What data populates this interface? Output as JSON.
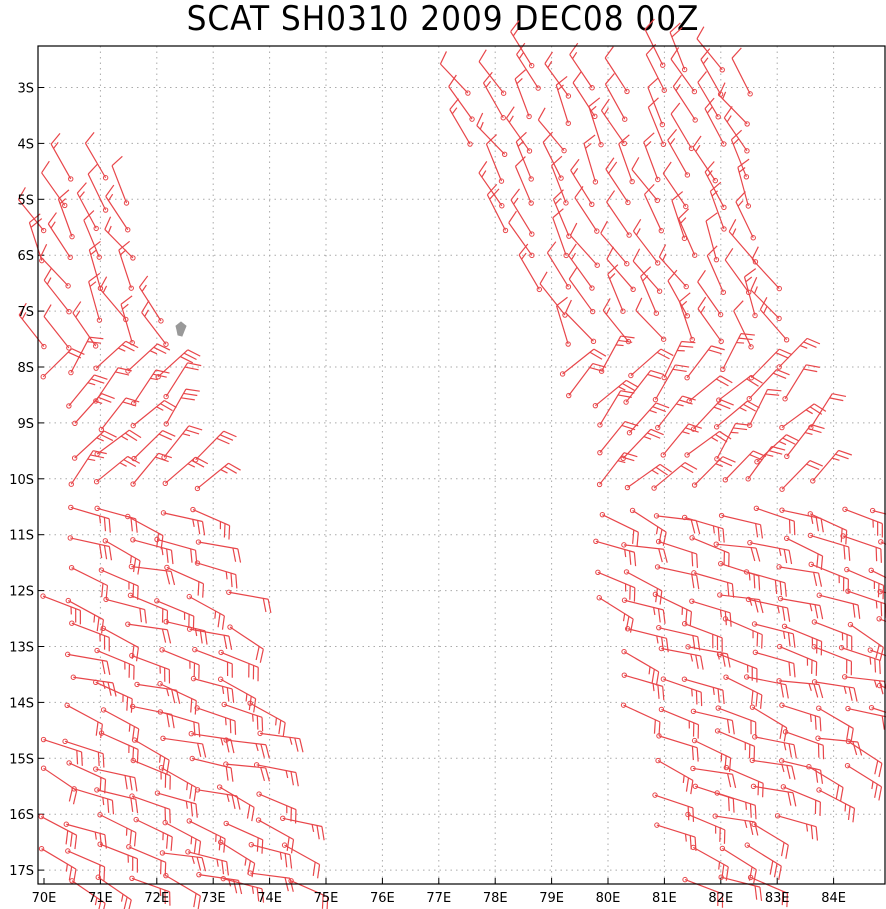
{
  "title": "SCAT SH0310 2009 DEC08 00Z",
  "colors": {
    "barb": "#e8464a",
    "grid": "#aaaaaa",
    "land": "#999999",
    "frame": "#000000"
  },
  "axes": {
    "lon_labels": [
      "70E",
      "71E",
      "72E",
      "73E",
      "74E",
      "75E",
      "76E",
      "77E",
      "78E",
      "79E",
      "80E",
      "81E",
      "82E",
      "83E",
      "84E"
    ],
    "lat_labels": [
      "3S",
      "4S",
      "5S",
      "6S",
      "7S",
      "8S",
      "9S",
      "10S",
      "11S",
      "12S",
      "13S",
      "14S",
      "15S",
      "16S",
      "17S"
    ]
  },
  "land": {
    "name": "island-near-72E-7S",
    "lon": 72.45,
    "lat": -7.35
  },
  "swaths": [
    {
      "name": "west-swath",
      "lon_range": [
        70.0,
        74.6
      ],
      "lat_range": [
        -4.1,
        -17.5
      ]
    },
    {
      "name": "east-swath",
      "lon_range": [
        77.0,
        84.9
      ],
      "lat_range": [
        -2.6,
        -17.5
      ]
    }
  ],
  "wind_regions": [
    {
      "lat_max": -2.5,
      "lat_min": -8.0,
      "direction_from_deg": 330,
      "speed_kt": 15
    },
    {
      "lat_max": -8.0,
      "lat_min": -10.5,
      "direction_from_deg": 40,
      "speed_kt": 25
    },
    {
      "lat_max": -10.5,
      "lat_min": -17.5,
      "direction_from_deg": 110,
      "speed_kt": 25
    }
  ]
}
